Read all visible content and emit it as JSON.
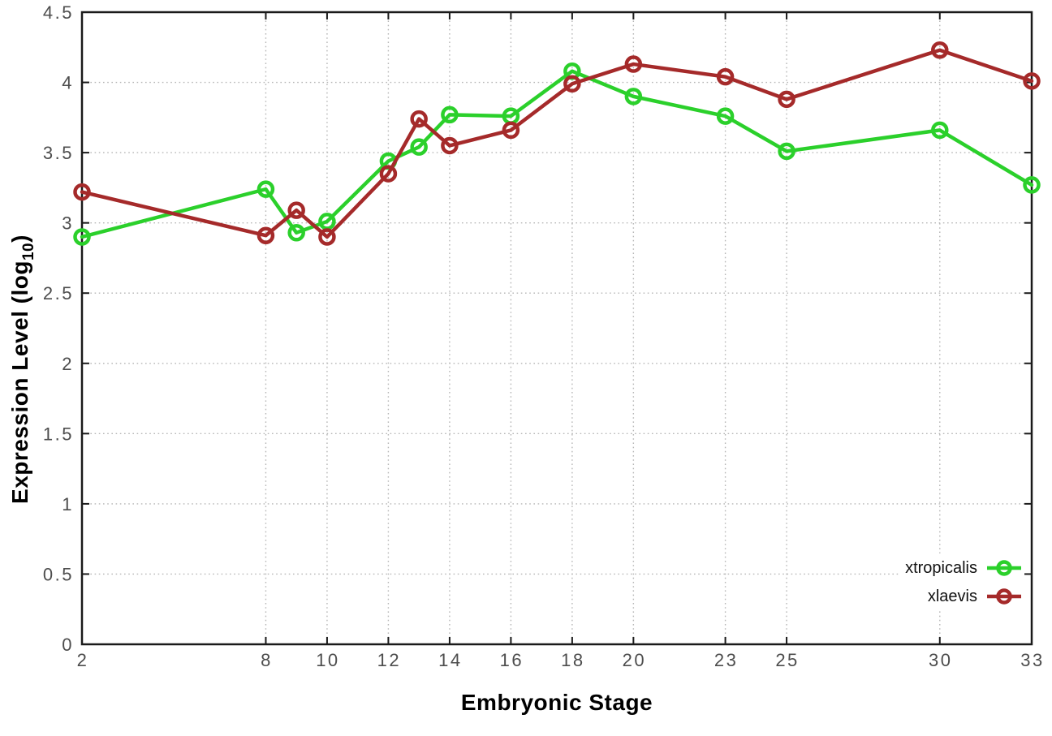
{
  "chart_data": {
    "type": "line",
    "title": "",
    "xlabel": "Embryonic Stage",
    "ylabel": "Expression Level (log10)",
    "ylabel_parts": {
      "base": "Expression Level (log",
      "sub": "10",
      "suffix": ")"
    },
    "xlim": [
      2,
      33
    ],
    "ylim": [
      0,
      4.5
    ],
    "grid": true,
    "legend_position": "bottom-right",
    "x": [
      2,
      8,
      9,
      10,
      12,
      13,
      14,
      16,
      18,
      20,
      23,
      25,
      30,
      33
    ],
    "series": [
      {
        "name": "xtropicalis",
        "color": "#2bd02b",
        "values": [
          2.9,
          3.24,
          2.93,
          3.01,
          3.44,
          3.54,
          3.77,
          3.76,
          4.08,
          3.9,
          3.76,
          3.51,
          3.66,
          3.27
        ]
      },
      {
        "name": "xlaevis",
        "color": "#a52a2a",
        "values": [
          3.22,
          2.91,
          3.09,
          2.9,
          3.35,
          3.74,
          3.55,
          3.66,
          3.99,
          4.13,
          4.04,
          3.88,
          4.23,
          4.01
        ]
      }
    ],
    "x_tick_values": [
      2,
      8,
      10,
      12,
      14,
      16,
      18,
      20,
      23,
      25,
      30,
      33
    ],
    "x_tick_labels": [
      "2",
      "8",
      "10",
      "12",
      "14",
      "16",
      "18",
      "20",
      "23",
      "25",
      "30",
      "33"
    ],
    "y_tick_values": [
      0,
      0.5,
      1,
      1.5,
      2,
      2.5,
      3,
      3.5,
      4,
      4.5
    ],
    "y_tick_labels": [
      "0",
      "0.5",
      "1",
      "1.5",
      "2",
      "2.5",
      "3",
      "3.5",
      "4",
      "4.5"
    ]
  },
  "legend": {
    "items": [
      {
        "label": "xtropicalis",
        "color": "#2bd02b"
      },
      {
        "label": "xlaevis",
        "color": "#a52a2a"
      }
    ]
  },
  "colors": {
    "background": "#ffffff",
    "border": "#1a1a1a",
    "grid": "#b6b6b6",
    "tick_label": "#4d4d4d",
    "series_green": "#2bd02b",
    "series_red": "#a52a2a"
  }
}
